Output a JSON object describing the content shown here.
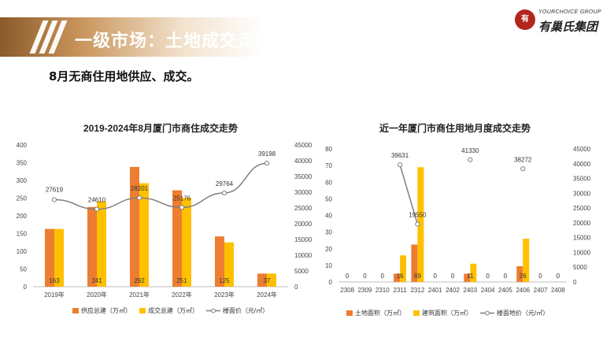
{
  "header": {
    "title": "一级市场：土地成交走势",
    "brand_en": "YOURCHOICE GROUP",
    "brand_cn": "有巢氏集团",
    "brand_mark": "有",
    "accent": "#b07a42"
  },
  "subtitle": "8月无商住用地供应、成交。",
  "colors": {
    "supply": "#ed7d31",
    "deal": "#ffc000",
    "price": "#7f7f7f"
  },
  "chart_data": [
    {
      "type": "bar",
      "title": "2019-2024年8月厦门市商住成交走势",
      "categories": [
        "2019年",
        "2020年",
        "2021年",
        "2022年",
        "2023年",
        "2024年"
      ],
      "series": [
        {
          "name": "供应总建（万㎡）",
          "type": "bar",
          "axis": "left",
          "values": [
            163,
            225,
            338,
            272,
            142,
            37
          ]
        },
        {
          "name": "成交总建（万㎡）",
          "type": "bar",
          "axis": "left",
          "values": [
            163,
            241,
            292,
            251,
            125,
            37
          ]
        },
        {
          "name": "楼面价（元/㎡）",
          "type": "line",
          "axis": "right",
          "values": [
            27619,
            24610,
            28201,
            25176,
            29764,
            39198
          ]
        }
      ],
      "bar_labels": [
        163,
        241,
        292,
        251,
        125,
        37
      ],
      "left_ticks": [
        0,
        50,
        100,
        150,
        200,
        250,
        300,
        350,
        400
      ],
      "right_ticks": [
        0,
        5000,
        10000,
        15000,
        20000,
        25000,
        30000,
        35000,
        40000,
        45000
      ],
      "ylim_left": [
        0,
        400
      ],
      "ylim_right": [
        0,
        45000
      ],
      "legend_position": "bottom"
    },
    {
      "type": "bar",
      "title": "近一年厦门市商住用地月度成交走势",
      "categories": [
        "2308",
        "2309",
        "2310",
        "2311",
        "2312",
        "2401",
        "2402",
        "2403",
        "2404",
        "2405",
        "2406",
        "2407",
        "2408"
      ],
      "series": [
        {
          "name": "土地面积（万㎡）",
          "type": "bar",
          "axis": "left",
          "values": [
            0,
            0,
            0,
            5,
            22.5,
            0,
            0,
            5,
            0,
            0,
            9.5,
            0,
            0
          ]
        },
        {
          "name": "建筑面积（万㎡）",
          "type": "bar",
          "axis": "left",
          "values": [
            0,
            0,
            0,
            16,
            69,
            0,
            0,
            11,
            0,
            0,
            26,
            0,
            0
          ]
        },
        {
          "name": "楼面地价（元/㎡）",
          "type": "line",
          "axis": "right",
          "values": [
            null,
            null,
            null,
            39631,
            19550,
            null,
            null,
            41330,
            null,
            null,
            38272,
            null,
            null
          ]
        }
      ],
      "bar_labels": [
        "0",
        "0",
        "0",
        "16",
        "69",
        "0",
        "0",
        "11",
        "0",
        "0",
        "26",
        "0",
        "0"
      ],
      "left_ticks": [
        0,
        10,
        20,
        30,
        40,
        50,
        60,
        70,
        80
      ],
      "right_ticks": [
        0,
        5000,
        10000,
        15000,
        20000,
        25000,
        30000,
        35000,
        40000,
        45000
      ],
      "ylim_left": [
        0,
        80
      ],
      "ylim_right": [
        0,
        45000
      ],
      "legend_position": "bottom"
    }
  ]
}
